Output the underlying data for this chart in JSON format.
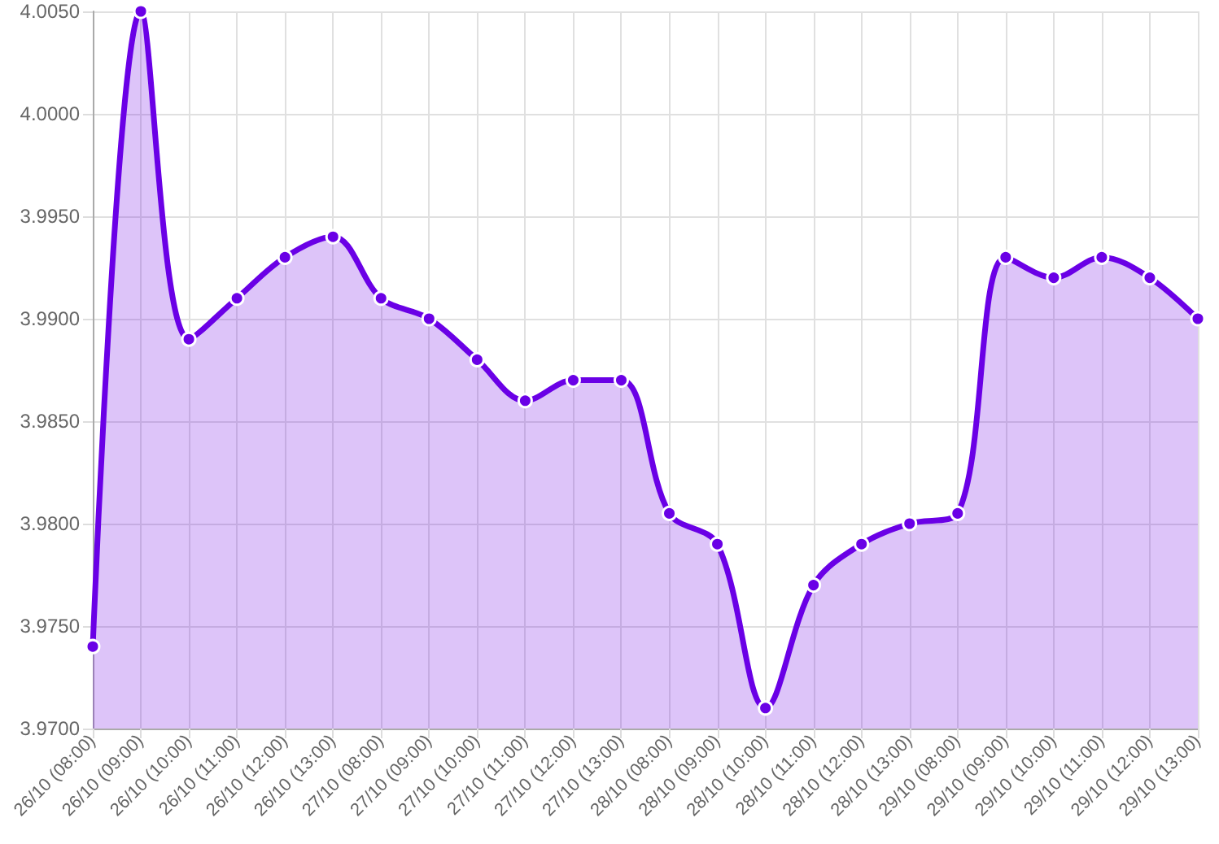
{
  "chart_data": {
    "type": "area",
    "categories": [
      "26/10 (08:00)",
      "26/10 (09:00)",
      "26/10 (10:00)",
      "26/10 (11:00)",
      "26/10 (12:00)",
      "26/10 (13:00)",
      "27/10 (08:00)",
      "27/10 (09:00)",
      "27/10 (10:00)",
      "27/10 (11:00)",
      "27/10 (12:00)",
      "27/10 (13:00)",
      "28/10 (08:00)",
      "28/10 (09:00)",
      "28/10 (10:00)",
      "28/10 (11:00)",
      "28/10 (12:00)",
      "28/10 (13:00)",
      "29/10 (08:00)",
      "29/10 (09:00)",
      "29/10 (10:00)",
      "29/10 (11:00)",
      "29/10 (12:00)",
      "29/10 (13:00)"
    ],
    "series": [
      {
        "color": "#6a00e6",
        "values": [
          3.974,
          4.005,
          3.989,
          3.991,
          3.993,
          3.994,
          3.991,
          3.99,
          3.988,
          3.986,
          3.987,
          3.987,
          3.9805,
          3.979,
          3.971,
          3.977,
          3.979,
          3.98,
          3.9805,
          3.993,
          3.992,
          3.993,
          3.992,
          3.99
        ]
      }
    ],
    "ylim": [
      3.97,
      4.005
    ],
    "yticks": [
      {
        "value": 3.97,
        "label": "3.9700"
      },
      {
        "value": 3.975,
        "label": "3.9750"
      },
      {
        "value": 3.98,
        "label": "3.9800"
      },
      {
        "value": 3.985,
        "label": "3.9850"
      },
      {
        "value": 3.99,
        "label": "3.9900"
      },
      {
        "value": 3.995,
        "label": "3.9950"
      },
      {
        "value": 4.0,
        "label": "4.0000"
      },
      {
        "value": 4.005,
        "label": "4.0050"
      }
    ],
    "grid": true,
    "marker": "circle",
    "line_style": "solid"
  }
}
